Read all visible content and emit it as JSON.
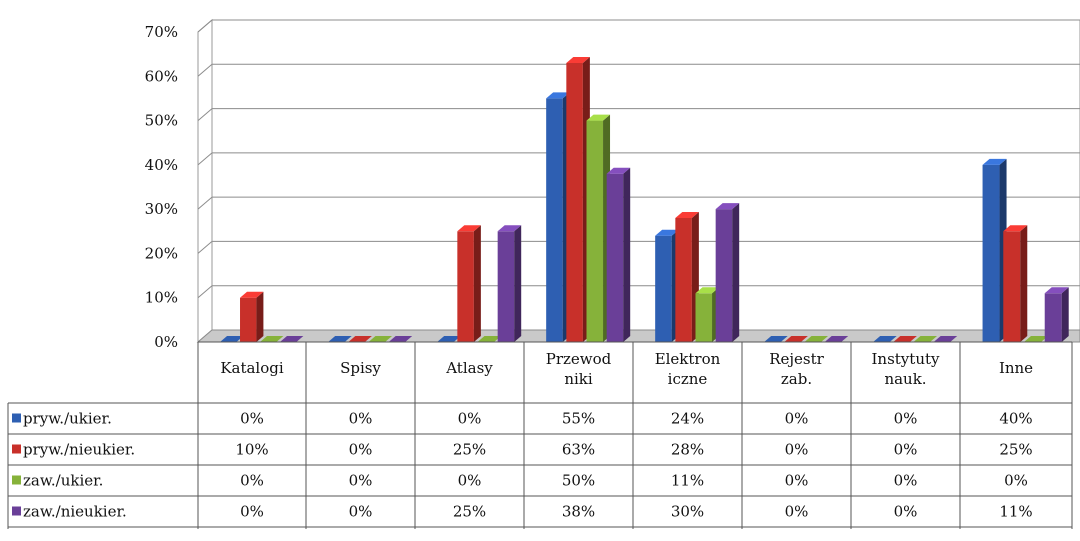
{
  "chart_data": {
    "type": "bar",
    "categories": [
      [
        "Katalogi"
      ],
      [
        "Spisy"
      ],
      [
        "Atlasy"
      ],
      [
        "Przewod",
        "niki"
      ],
      [
        "Elektron",
        "iczne"
      ],
      [
        "Rejestr",
        "zab."
      ],
      [
        "Instytuty",
        "nauk."
      ],
      [
        "Inne"
      ]
    ],
    "series": [
      {
        "name": "pryw./ukier.",
        "color": "#2e5fb2",
        "values": [
          0,
          0,
          0,
          55,
          24,
          0,
          0,
          40
        ],
        "labels": [
          "0%",
          "0%",
          "0%",
          "55%",
          "24%",
          "0%",
          "0%",
          "40%"
        ]
      },
      {
        "name": "pryw./nieukier.",
        "color": "#c8302a",
        "values": [
          10,
          0,
          25,
          63,
          28,
          0,
          0,
          25
        ],
        "labels": [
          "10%",
          "0%",
          "25%",
          "63%",
          "28%",
          "0%",
          "0%",
          "25%"
        ]
      },
      {
        "name": "zaw./ukier.",
        "color": "#86b23a",
        "values": [
          0,
          0,
          0,
          50,
          11,
          0,
          0,
          0
        ],
        "labels": [
          "0%",
          "0%",
          "0%",
          "50%",
          "11%",
          "0%",
          "0%",
          "0%"
        ]
      },
      {
        "name": "zaw./nieukier.",
        "color": "#6a3f98",
        "values": [
          0,
          0,
          25,
          38,
          30,
          0,
          0,
          11
        ],
        "labels": [
          "0%",
          "0%",
          "25%",
          "38%",
          "30%",
          "0%",
          "0%",
          "11%"
        ]
      }
    ],
    "y_ticks": [
      "0%",
      "10%",
      "20%",
      "30%",
      "40%",
      "50%",
      "60%",
      "70%"
    ],
    "ylim": [
      0,
      70
    ],
    "grid": true,
    "legend": "data-table-left"
  }
}
